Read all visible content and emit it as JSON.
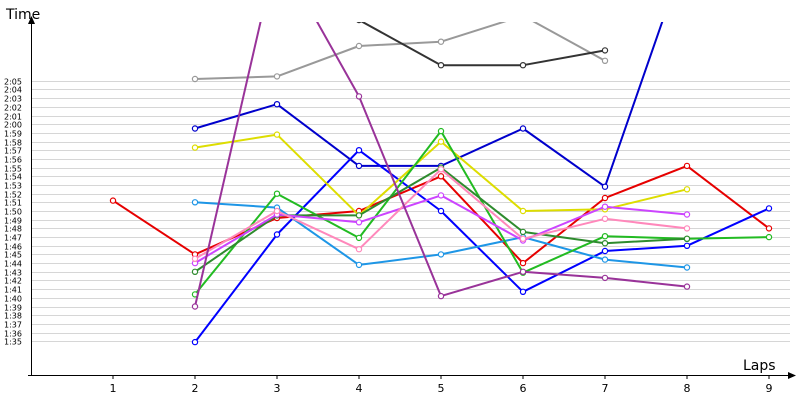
{
  "chart_data": {
    "type": "line",
    "title": "",
    "xlabel": "Laps",
    "ylabel": "Time",
    "x": [
      1,
      2,
      3,
      4,
      5,
      6,
      7,
      8,
      9
    ],
    "xlim": [
      0,
      9
    ],
    "ylim": [
      "1:31",
      "2:12"
    ],
    "y_ticks": [
      "1:35",
      "1:36",
      "1:37",
      "1:38",
      "1:39",
      "1:40",
      "1:41",
      "1:42",
      "1:43",
      "1:44",
      "1:45",
      "1:46",
      "1:47",
      "1:48",
      "1:49",
      "1:50",
      "1:51",
      "1:52",
      "1:53",
      "1:54",
      "1:55",
      "1:56",
      "1:57",
      "1:58",
      "1:59",
      "2:00",
      "2:01",
      "2:02",
      "2:03",
      "2:04",
      "2:05"
    ],
    "grid": true,
    "legend": "none",
    "series": [
      {
        "color": "#e60000",
        "values": [
          "1:51.2",
          "1:45.0",
          "1:49.2",
          "1:50.0",
          "1:54.0",
          "1:44.0",
          "1:51.5",
          "1:55.2",
          "1:48.0"
        ]
      },
      {
        "color": "#999999",
        "values": [
          null,
          "2:05.2",
          "2:05.5",
          "2:09.0",
          "2:09.5",
          "2:12.5",
          "2:07.3",
          null,
          null
        ]
      },
      {
        "color": "#333333",
        "values": [
          null,
          null,
          null,
          "2:12.0",
          "2:06.8",
          "2:06.8",
          "2:08.5",
          null,
          null
        ]
      },
      {
        "color": "#0000cc",
        "values": [
          null,
          "1:59.5",
          "2:02.3",
          "1:55.2",
          "1:55.2",
          "1:59.5",
          "1:52.8",
          "2:20.0",
          null
        ]
      },
      {
        "color": "#0000ff",
        "values": [
          null,
          "1:34.9",
          "1:47.3",
          "1:57.0",
          "1:50.0",
          "1:40.7",
          "1:45.4",
          "1:46.0",
          "1:50.3"
        ]
      },
      {
        "color": "#dddd00",
        "values": [
          null,
          "1:57.3",
          "1:58.8",
          "1:49.5",
          "1:58.0",
          "1:50.0",
          "1:50.2",
          "1:52.5",
          null
        ]
      },
      {
        "color": "#1e96e6",
        "values": [
          null,
          "1:51.0",
          "1:50.4",
          "1:43.8",
          "1:45.0",
          "1:47.0",
          "1:44.4",
          "1:43.5",
          null
        ]
      },
      {
        "color": "#22bb22",
        "values": [
          null,
          "1:40.4",
          "1:52.0",
          "1:46.9",
          "1:59.2",
          "1:42.9",
          "1:47.1",
          "1:46.8",
          "1:47.0"
        ]
      },
      {
        "color": "#2e8b2e",
        "values": [
          null,
          "1:43.0",
          "1:49.5",
          "1:49.5",
          "1:55.0",
          "1:47.6",
          "1:46.3",
          "1:46.8",
          null
        ]
      },
      {
        "color": "#cc44ff",
        "values": [
          null,
          "1:44.0",
          "1:49.6",
          "1:48.7",
          "1:51.8",
          "1:46.6",
          "1:50.5",
          "1:49.6",
          null
        ]
      },
      {
        "color": "#ff88bb",
        "values": [
          null,
          "1:44.5",
          "1:50.0",
          "1:45.6",
          "1:54.8",
          "1:46.8",
          "1:49.1",
          "1:48.0",
          null
        ]
      },
      {
        "color": "#993399",
        "values": [
          null,
          "1:39.0",
          "2:20.0",
          "2:03.2",
          "1:40.2",
          "1:43.0",
          "1:42.3",
          "1:41.3",
          null
        ]
      }
    ]
  }
}
